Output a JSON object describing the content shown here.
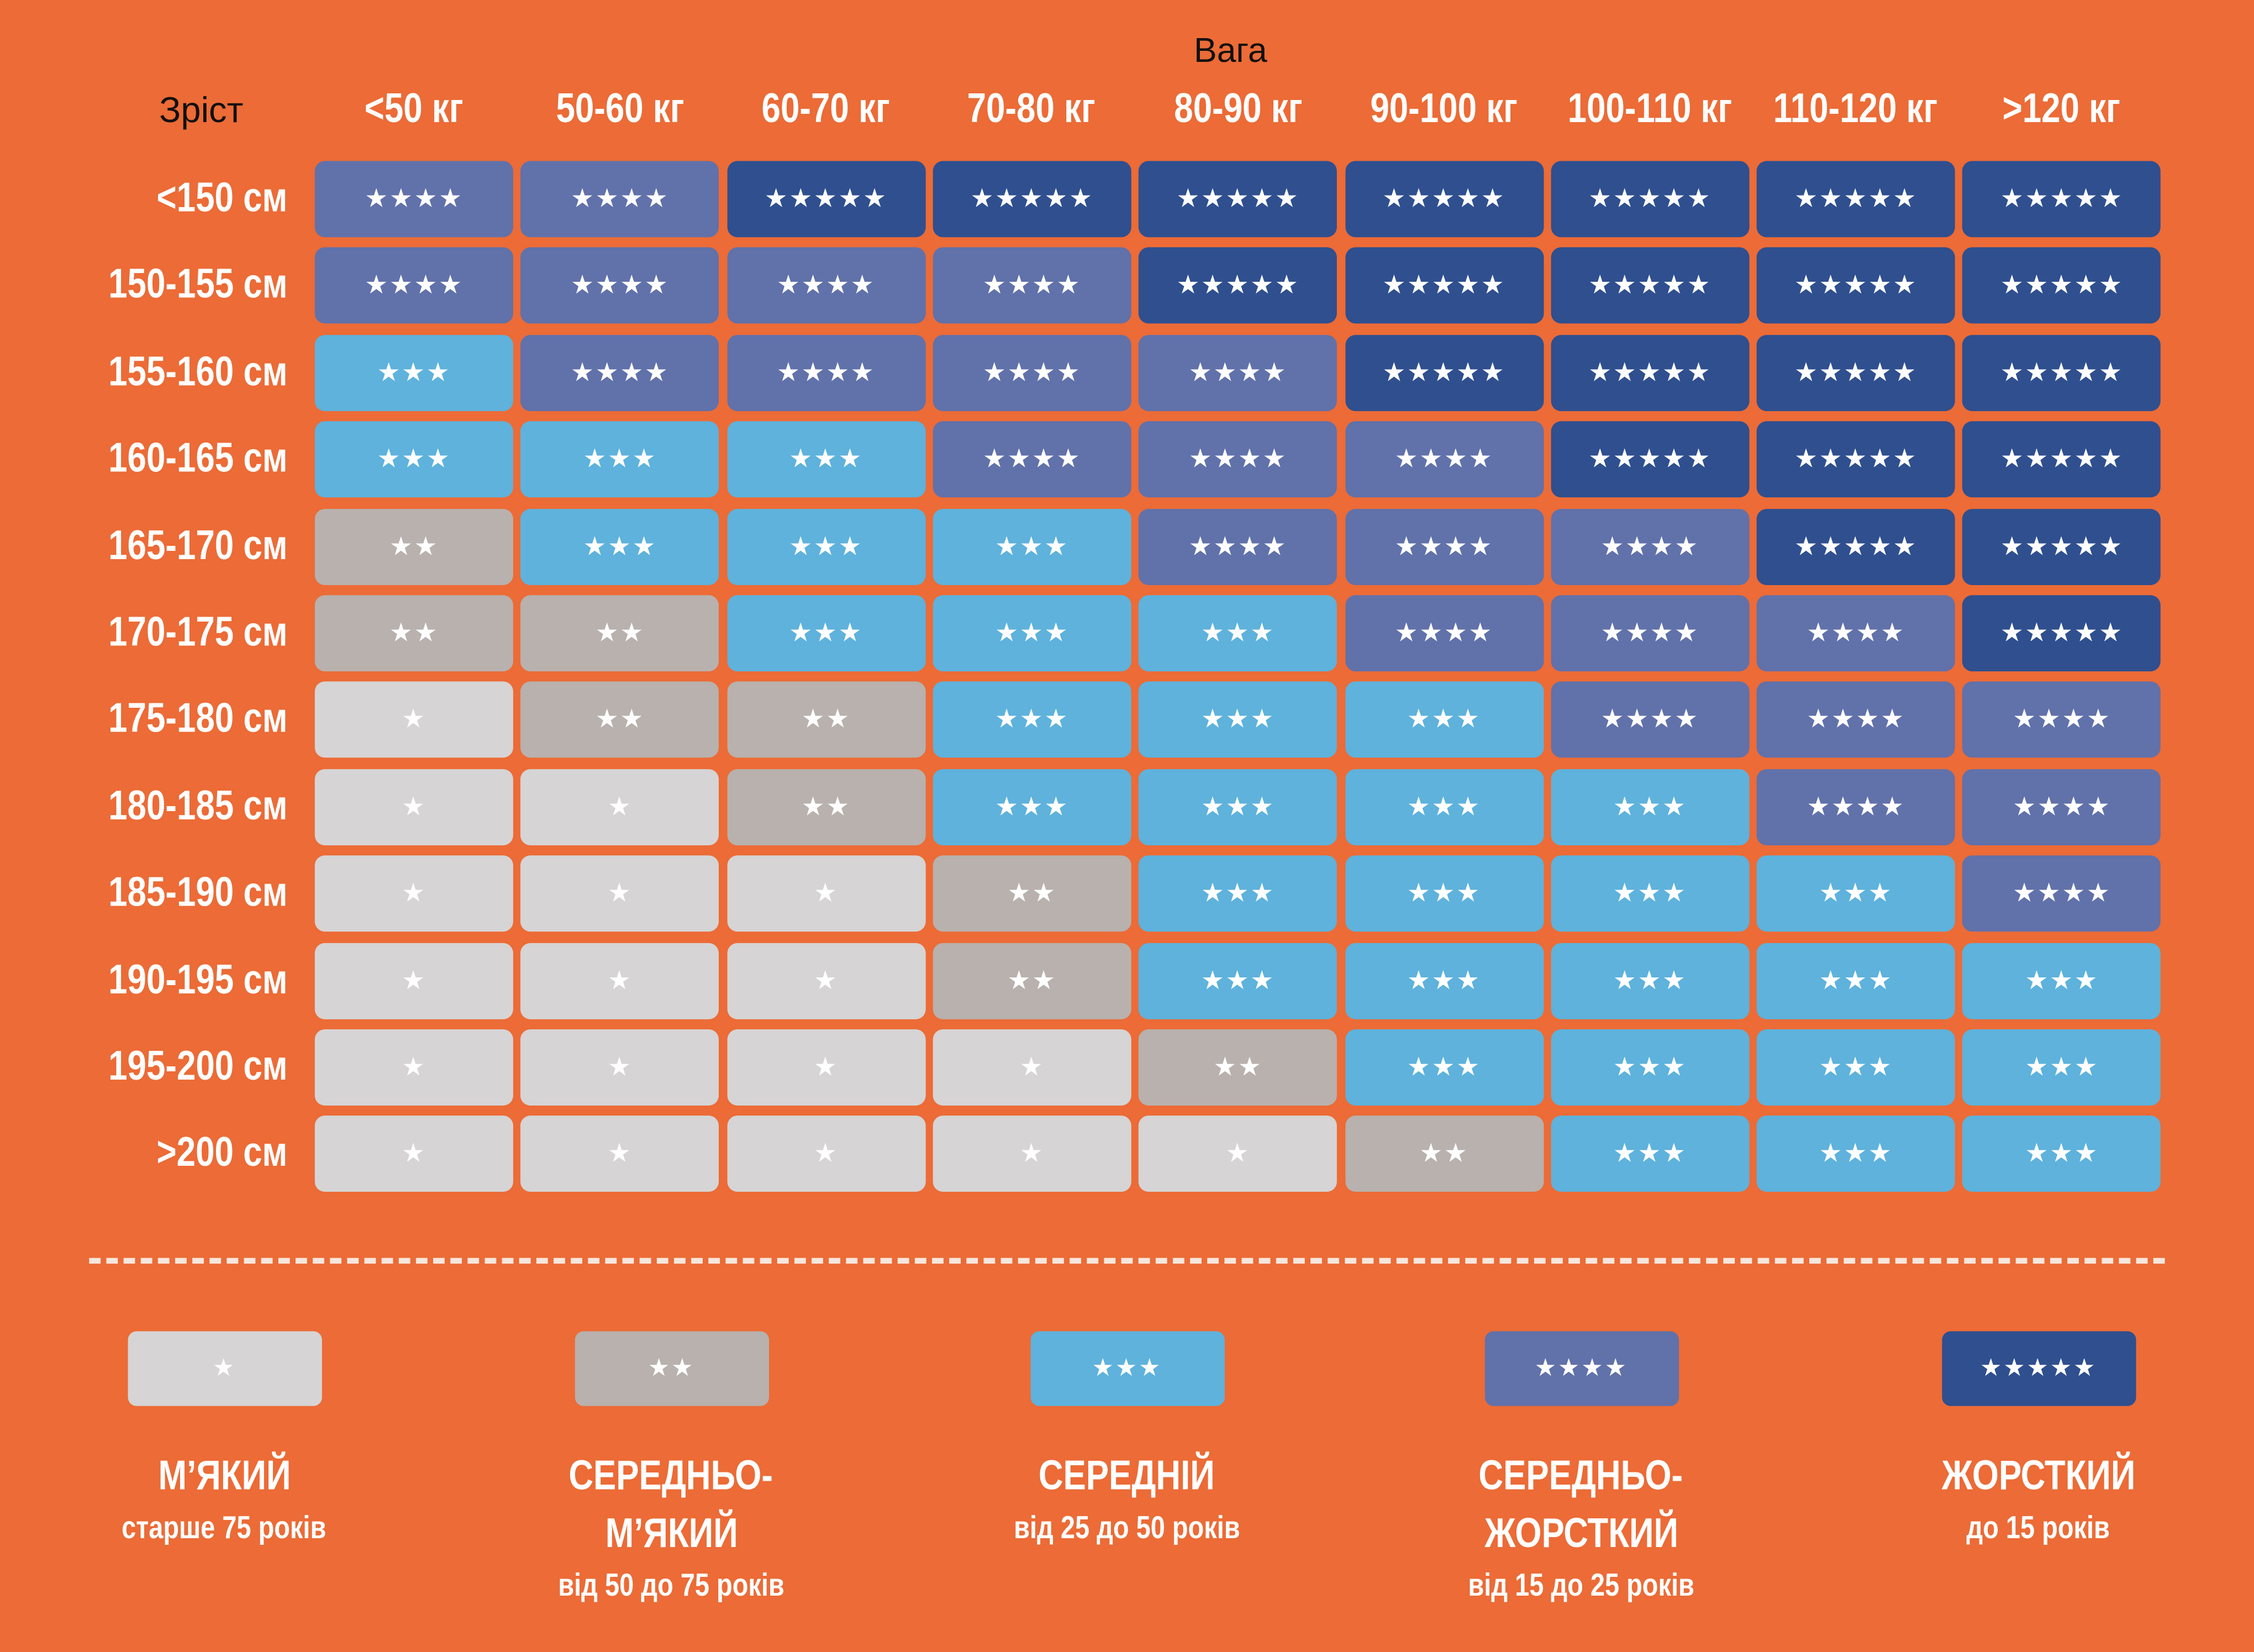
{
  "chart_data": {
    "type": "heatmap",
    "xlabel": "Вага",
    "ylabel": "Зріст",
    "columns": [
      "<50 кг",
      "50-60 кг",
      "60-70 кг",
      "70-80 кг",
      "80-90 кг",
      "90-100 кг",
      "100-110 кг",
      "110-120 кг",
      ">120 кг"
    ],
    "rows": [
      "<150 см",
      "150-155 см",
      "155-160 см",
      "160-165 см",
      "165-170 см",
      "170-175 см",
      "175-180 см",
      "180-185 см",
      "185-190 см",
      "190-195 см",
      "195-200 см",
      ">200 см"
    ],
    "values": [
      [
        4,
        4,
        5,
        5,
        5,
        5,
        5,
        5,
        5
      ],
      [
        4,
        4,
        4,
        4,
        5,
        5,
        5,
        5,
        5
      ],
      [
        3,
        4,
        4,
        4,
        4,
        5,
        5,
        5,
        5
      ],
      [
        3,
        3,
        3,
        4,
        4,
        4,
        5,
        5,
        5
      ],
      [
        2,
        3,
        3,
        3,
        4,
        4,
        4,
        5,
        5
      ],
      [
        2,
        2,
        3,
        3,
        3,
        4,
        4,
        4,
        5
      ],
      [
        1,
        2,
        2,
        3,
        3,
        3,
        4,
        4,
        4
      ],
      [
        1,
        1,
        2,
        3,
        3,
        3,
        3,
        4,
        4
      ],
      [
        1,
        1,
        1,
        2,
        3,
        3,
        3,
        3,
        4
      ],
      [
        1,
        1,
        1,
        2,
        3,
        3,
        3,
        3,
        3
      ],
      [
        1,
        1,
        1,
        1,
        2,
        3,
        3,
        3,
        3
      ],
      [
        1,
        1,
        1,
        1,
        1,
        2,
        3,
        3,
        3
      ]
    ],
    "star_icon": "star-icon",
    "colors": {
      "1": "#d6d4d5",
      "2": "#b8b1ad",
      "3": "#5eb2dc",
      "4": "#6171aa",
      "5": "#2f4f8f"
    },
    "background": "#ec6b36",
    "legend": [
      {
        "level": 1,
        "title": [
          "М’ЯКИЙ"
        ],
        "subtitle": "старше 75 років"
      },
      {
        "level": 2,
        "title": [
          "СЕРЕДНЬО-",
          "М’ЯКИЙ"
        ],
        "subtitle": "від 50 до 75 років"
      },
      {
        "level": 3,
        "title": [
          "СЕРЕДНІЙ"
        ],
        "subtitle": "від 25 до 50 років"
      },
      {
        "level": 4,
        "title": [
          "СЕРЕДНЬО-",
          "ЖОРСТКИЙ"
        ],
        "subtitle": "від 15 до 25 років"
      },
      {
        "level": 5,
        "title": [
          "ЖОРСТКИЙ"
        ],
        "subtitle": "до 15 років"
      }
    ],
    "legend_placement": "bottom"
  }
}
